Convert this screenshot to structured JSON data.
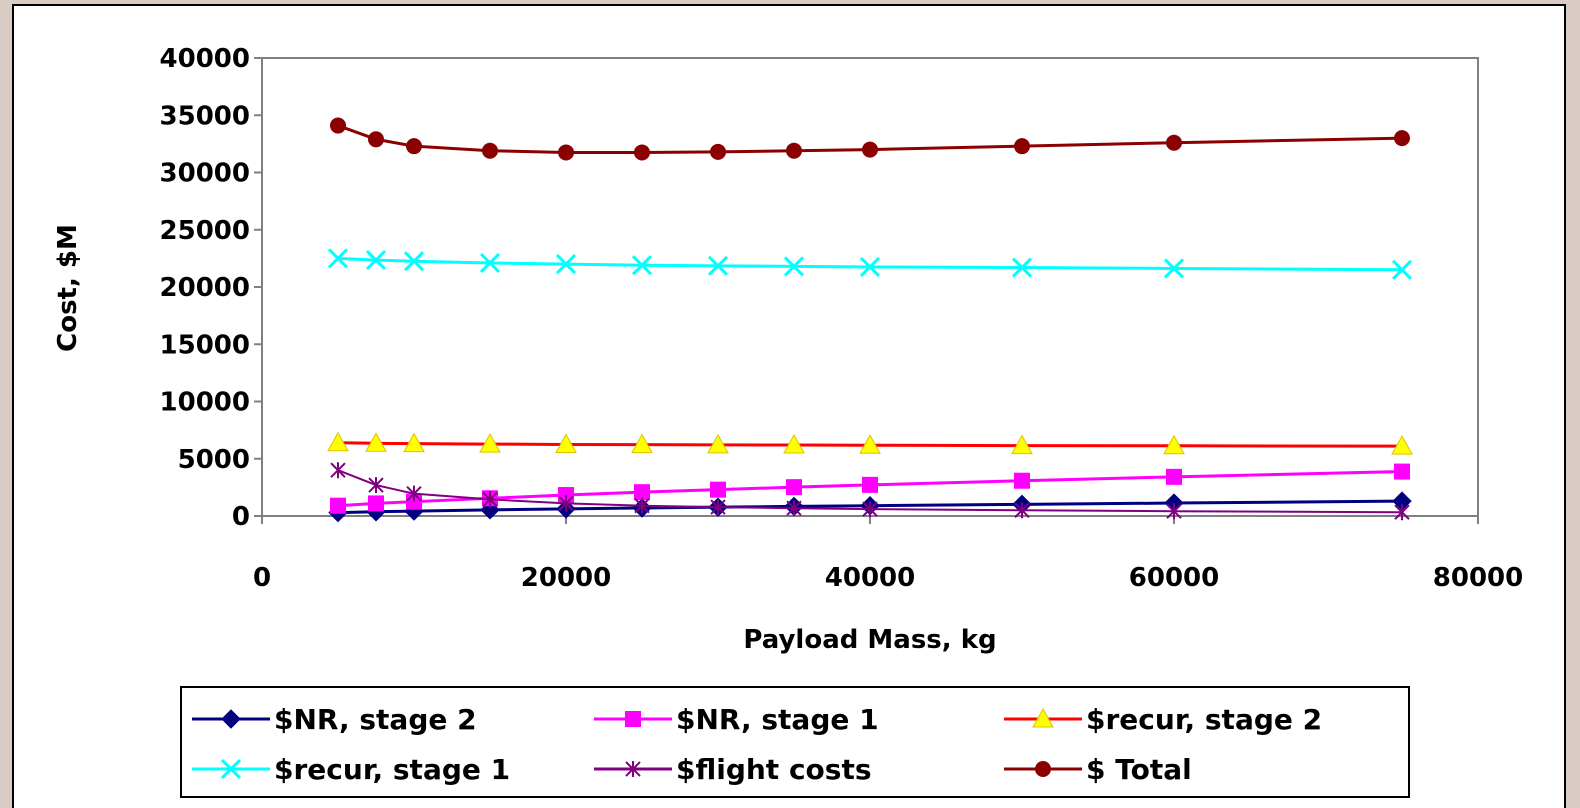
{
  "chart_data": {
    "type": "line",
    "xlabel": "Payload Mass, kg",
    "ylabel": "Cost, $M",
    "xlim": [
      0,
      80000
    ],
    "ylim": [
      0,
      40000
    ],
    "x_ticks": [
      "0",
      "20000",
      "40000",
      "60000",
      "80000"
    ],
    "y_ticks": [
      "0",
      "5000",
      "10000",
      "15000",
      "20000",
      "25000",
      "30000",
      "35000",
      "40000"
    ],
    "x": [
      5000,
      7500,
      10000,
      15000,
      20000,
      25000,
      30000,
      35000,
      40000,
      50000,
      60000,
      75000
    ],
    "series": [
      {
        "name": "$NR, stage 2",
        "color": "#000080",
        "marker": "diamond",
        "values": [
          300,
          370,
          430,
          540,
          620,
          700,
          770,
          840,
          900,
          1020,
          1130,
          1300
        ]
      },
      {
        "name": "$NR, stage 1",
        "color": "#ff00ff",
        "marker": "square",
        "values": [
          900,
          1100,
          1250,
          1550,
          1830,
          2080,
          2300,
          2520,
          2720,
          3080,
          3420,
          3880
        ]
      },
      {
        "name": "$recur, stage 2",
        "color": "#ff0000",
        "marker": "triangle",
        "values": [
          6400,
          6350,
          6320,
          6280,
          6250,
          6230,
          6210,
          6200,
          6180,
          6150,
          6130,
          6100
        ]
      },
      {
        "name": "$recur, stage 1",
        "color": "#00ffff",
        "marker": "x",
        "values": [
          22500,
          22350,
          22250,
          22100,
          22000,
          21900,
          21850,
          21800,
          21750,
          21700,
          21620,
          21500
        ]
      },
      {
        "name": "$flight costs",
        "color": "#800080",
        "marker": "star",
        "values": [
          4000,
          2700,
          1950,
          1450,
          1100,
          900,
          780,
          680,
          600,
          500,
          420,
          330
        ]
      },
      {
        "name": "$ Total",
        "color": "#8b0000",
        "marker": "circle",
        "values": [
          34100,
          32900,
          32300,
          31900,
          31750,
          31750,
          31800,
          31900,
          32000,
          32300,
          32600,
          33000
        ]
      }
    ],
    "legend_position": "bottom",
    "grid": false
  }
}
